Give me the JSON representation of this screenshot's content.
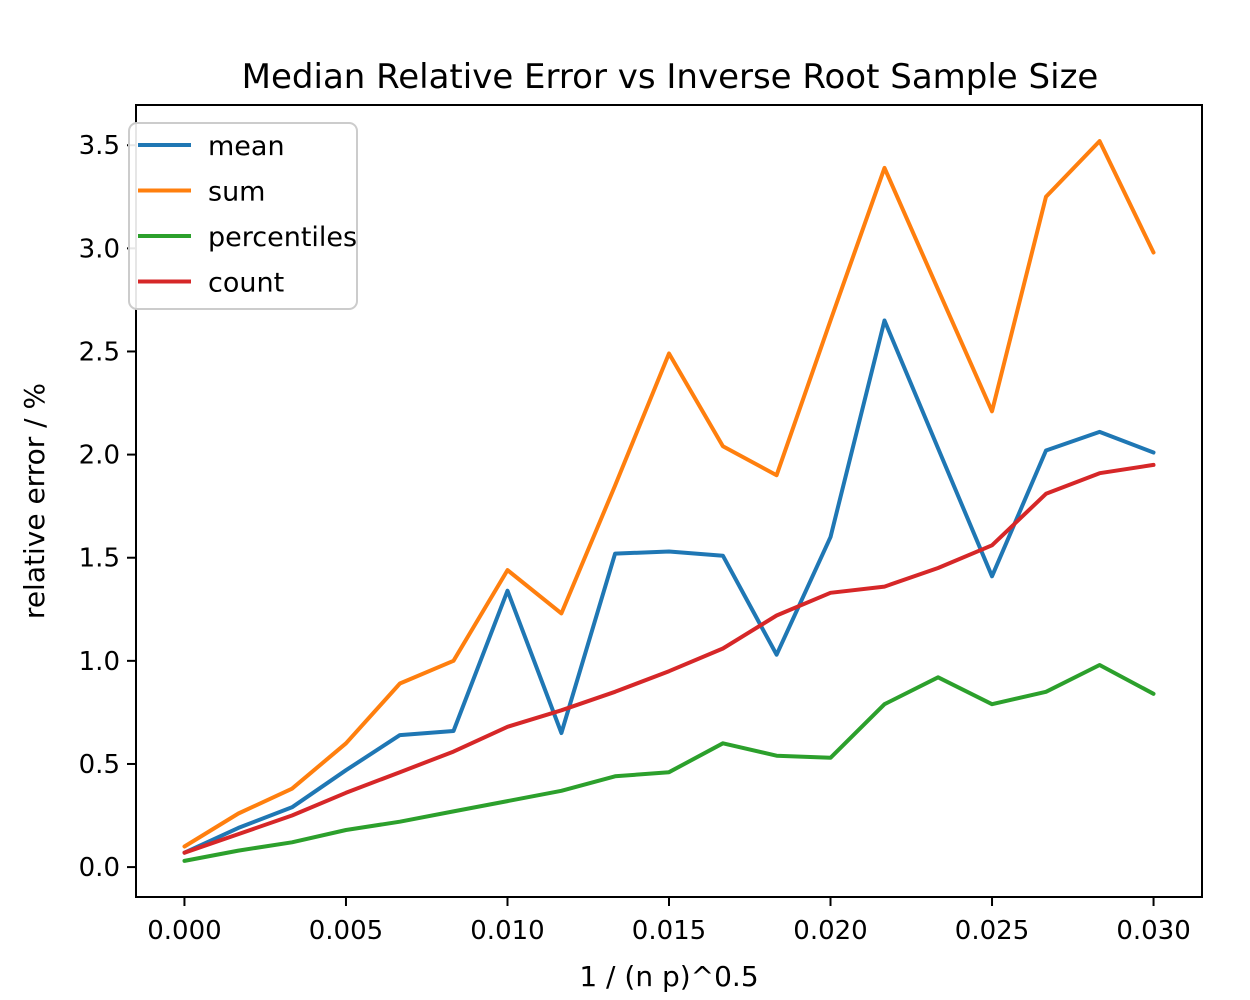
{
  "chart_data": {
    "type": "line",
    "title": "Median Relative Error vs Inverse Root Sample Size",
    "xlabel": "1 / (n p)^0.5",
    "ylabel": "relative error / %",
    "x": [
      0.0,
      0.00167,
      0.00333,
      0.005,
      0.00667,
      0.00833,
      0.01,
      0.01167,
      0.01333,
      0.015,
      0.01667,
      0.01833,
      0.02,
      0.02167,
      0.02333,
      0.025,
      0.02667,
      0.02833,
      0.03
    ],
    "series": [
      {
        "name": "mean",
        "color": "#1f77b4",
        "values": [
          0.07,
          0.19,
          0.29,
          0.47,
          0.64,
          0.66,
          1.34,
          0.65,
          1.52,
          1.53,
          1.51,
          1.03,
          1.6,
          2.65,
          2.03,
          1.41,
          2.02,
          2.11,
          2.01
        ]
      },
      {
        "name": "sum",
        "color": "#ff7f0e",
        "values": [
          0.1,
          0.26,
          0.38,
          0.6,
          0.89,
          1.0,
          1.44,
          1.23,
          1.85,
          2.49,
          2.04,
          1.9,
          2.65,
          3.39,
          2.8,
          2.21,
          3.25,
          3.52,
          2.98
        ]
      },
      {
        "name": "percentiles",
        "color": "#2ca02c",
        "values": [
          0.03,
          0.08,
          0.12,
          0.18,
          0.22,
          0.27,
          0.32,
          0.37,
          0.44,
          0.46,
          0.6,
          0.54,
          0.53,
          0.79,
          0.92,
          0.79,
          0.85,
          0.98,
          0.84
        ]
      },
      {
        "name": "count",
        "color": "#d62728",
        "values": [
          0.07,
          0.16,
          0.25,
          0.36,
          0.46,
          0.56,
          0.68,
          0.76,
          0.85,
          0.95,
          1.06,
          1.22,
          1.33,
          1.36,
          1.45,
          1.56,
          1.81,
          1.91,
          1.95
        ]
      }
    ],
    "xticks": {
      "values": [
        0.0,
        0.005,
        0.01,
        0.015,
        0.02,
        0.025,
        0.03
      ],
      "labels": [
        "0.000",
        "0.005",
        "0.010",
        "0.015",
        "0.020",
        "0.025",
        "0.030"
      ]
    },
    "yticks": {
      "values": [
        0.0,
        0.5,
        1.0,
        1.5,
        2.0,
        2.5,
        3.0,
        3.5
      ],
      "labels": [
        "0.0",
        "0.5",
        "1.0",
        "1.5",
        "2.0",
        "2.5",
        "3.0",
        "3.5"
      ]
    },
    "xlim": [
      -0.0015,
      0.0315
    ],
    "ylim": [
      -0.145,
      3.695
    ],
    "grid": false,
    "legend_position": "upper-left",
    "background": "#ffffff",
    "spine_color": "#000000",
    "legend_border_color": "#cccccc"
  }
}
